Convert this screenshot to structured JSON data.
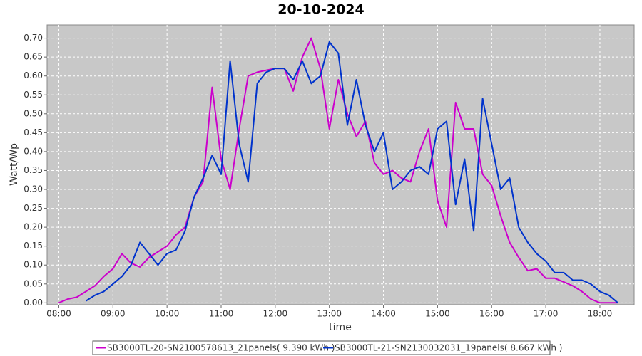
{
  "chart_data": {
    "type": "line",
    "title": "20-10-2024",
    "x_label": "time",
    "y_label": "Watt/Wp",
    "x": [
      "08:00",
      "08:10",
      "08:20",
      "08:30",
      "08:40",
      "08:50",
      "09:00",
      "09:10",
      "09:20",
      "09:30",
      "09:40",
      "09:50",
      "10:00",
      "10:10",
      "10:20",
      "10:30",
      "10:40",
      "10:50",
      "11:00",
      "11:10",
      "11:20",
      "11:30",
      "11:40",
      "11:50",
      "12:00",
      "12:10",
      "12:20",
      "12:30",
      "12:40",
      "12:50",
      "13:00",
      "13:10",
      "13:20",
      "13:30",
      "13:40",
      "13:50",
      "14:00",
      "14:10",
      "14:20",
      "14:30",
      "14:40",
      "14:50",
      "15:00",
      "15:10",
      "15:20",
      "15:30",
      "15:40",
      "15:50",
      "16:00",
      "16:10",
      "16:20",
      "16:30",
      "16:40",
      "16:50",
      "17:00",
      "17:10",
      "17:20",
      "17:30",
      "17:40",
      "17:50",
      "18:00",
      "18:10",
      "18:20"
    ],
    "series": [
      {
        "name": "SB3000TL-20-SN2100578613_21panels( 9.390 kWh )",
        "color": "#cc00cc",
        "values": [
          0,
          0.01,
          0.015,
          0.03,
          0.045,
          0.07,
          0.09,
          0.13,
          0.105,
          0.095,
          0.12,
          0.135,
          0.15,
          0.18,
          0.2,
          0.28,
          0.32,
          0.57,
          0.38,
          0.3,
          0.46,
          0.6,
          0.61,
          0.615,
          0.62,
          0.62,
          0.56,
          0.65,
          0.7,
          0.62,
          0.46,
          0.59,
          0.5,
          0.44,
          0.48,
          0.37,
          0.34,
          0.35,
          0.33,
          0.32,
          0.4,
          0.46,
          0.27,
          0.2,
          0.53,
          0.46,
          0.46,
          0.34,
          0.31,
          0.23,
          0.16,
          0.12,
          0.085,
          0.09,
          0.065,
          0.065,
          0.055,
          0.045,
          0.03,
          0.01,
          0,
          0,
          0
        ]
      },
      {
        "name": "SB3000TL-21-SN2130032031_19panels( 8.667 kWh )",
        "color": "#0033cc",
        "values": [
          null,
          null,
          null,
          0.005,
          0.02,
          0.03,
          0.05,
          0.07,
          0.1,
          0.16,
          0.13,
          0.1,
          0.13,
          0.14,
          0.19,
          0.28,
          0.33,
          0.39,
          0.34,
          0.64,
          0.42,
          0.32,
          0.58,
          0.61,
          0.62,
          0.62,
          0.59,
          0.64,
          0.58,
          0.6,
          0.69,
          0.66,
          0.47,
          0.59,
          0.47,
          0.4,
          0.45,
          0.3,
          0.32,
          0.35,
          0.36,
          0.34,
          0.46,
          0.48,
          0.26,
          0.38,
          0.19,
          0.54,
          0.42,
          0.3,
          0.33,
          0.2,
          0.16,
          0.13,
          0.11,
          0.08,
          0.08,
          0.06,
          0.06,
          0.05,
          0.03,
          0.02,
          0
        ]
      }
    ],
    "xlim": [
      "07:47",
      "18:38"
    ],
    "xticks": [
      "08:00",
      "09:00",
      "10:00",
      "11:00",
      "12:00",
      "13:00",
      "14:00",
      "15:00",
      "16:00",
      "17:00",
      "18:00"
    ],
    "ylim": [
      -0.005,
      0.735
    ],
    "yticks": [
      {
        "value": 0,
        "label": "0.00"
      },
      {
        "value": 0.05,
        "label": "0.05"
      },
      {
        "value": 0.1,
        "label": "0.10"
      },
      {
        "value": 0.15,
        "label": "0.15"
      },
      {
        "value": 0.2,
        "label": "0.20"
      },
      {
        "value": 0.25,
        "label": "0.25"
      },
      {
        "value": 0.3,
        "label": "0.30"
      },
      {
        "value": 0.35,
        "label": "0.35"
      },
      {
        "value": 0.4,
        "label": "0.40"
      },
      {
        "value": 0.45,
        "label": "0.45"
      },
      {
        "value": 0.5,
        "label": "0.50"
      },
      {
        "value": 0.55,
        "label": "0.55"
      },
      {
        "value": 0.6,
        "label": "0.60"
      },
      {
        "value": 0.65,
        "label": "0.65"
      },
      {
        "value": 0.7,
        "label": "0.70"
      }
    ],
    "grid": true,
    "legend": "bottom"
  }
}
